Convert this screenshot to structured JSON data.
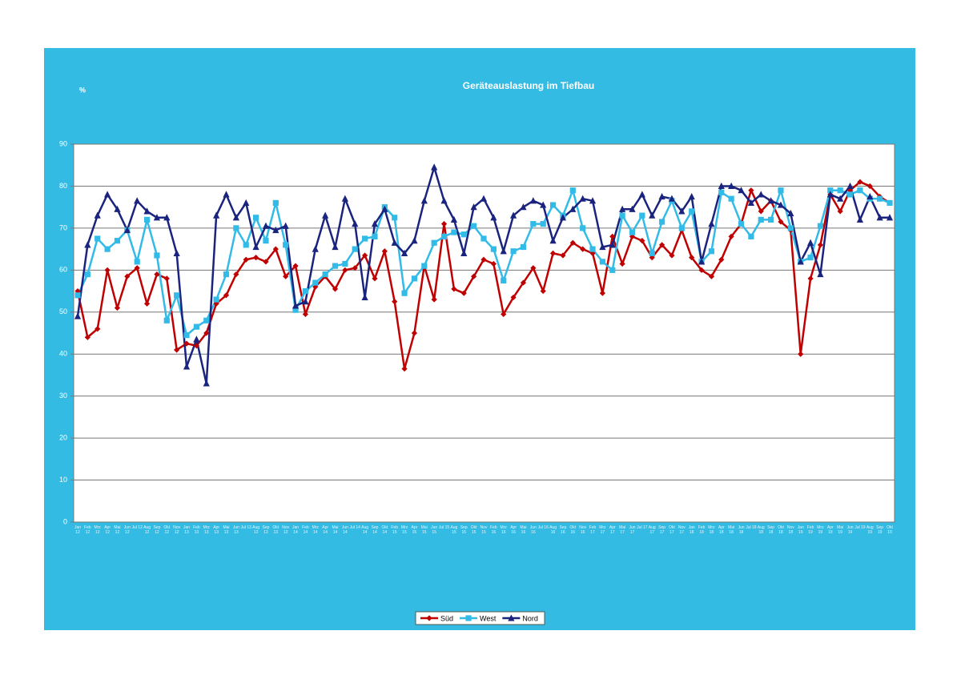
{
  "chart_data": {
    "type": "line",
    "title": "Geräteauslastung im Tiefbau",
    "y_label": "%",
    "categories": [
      "Jan 12",
      "Feb 12",
      "Mrz 12",
      "Apr 12",
      "Mai 12",
      "Jun 12",
      "Jul 12",
      "Aug 12",
      "Sep 12",
      "Okt 12",
      "Nov 12",
      "Jan 13",
      "Feb 13",
      "Mrz 13",
      "Apr 13",
      "Mai 13",
      "Jun 13",
      "Jul 13",
      "Aug 13",
      "Sep 13",
      "Okt 13",
      "Nov 13",
      "Jan 14",
      "Feb 14",
      "Mrz 14",
      "Apr 14",
      "Mai 14",
      "Jun 14",
      "Jul 14",
      "Aug 14",
      "Sep 14",
      "Okt 14",
      "Feb 15",
      "Mrz 15",
      "Apr 15",
      "Mai 15",
      "Jun 15",
      "Jul 15",
      "Aug 15",
      "Sep 15",
      "Okt 15",
      "Nov 15",
      "Feb 16",
      "Mrz 16",
      "Apr 16",
      "Mai 16",
      "Jun 16",
      "Jul 16",
      "Aug 16",
      "Sep 16",
      "Okt 16",
      "Nov 16",
      "Feb 17",
      "Mrz 17",
      "Apr 17",
      "Mai 17",
      "Jun 17",
      "Jul 17",
      "Aug 17",
      "Sep 17",
      "Okt 17",
      "Nov 17",
      "Jan 18",
      "Feb 18",
      "Mrz 18",
      "Apr 18",
      "Mai 18",
      "Jun 18",
      "Jul 18",
      "Aug 18",
      "Sep 18",
      "Okt 18",
      "Nov 18",
      "Jan 19",
      "Feb 19",
      "Mrz 19",
      "Apr 19",
      "Mai 19",
      "Jun 19",
      "Jul 19",
      "Aug 19",
      "Sep 19",
      "Okt 19"
    ],
    "series": [
      {
        "name": "Süd",
        "color": "#c00000",
        "marker": "diamond",
        "values": [
          55,
          44,
          46,
          60,
          51,
          58.5,
          60.5,
          52,
          59,
          58,
          41,
          42.5,
          42,
          45,
          52,
          54,
          59,
          62.5,
          63,
          62,
          65,
          58.5,
          61,
          49.5,
          56,
          58.5,
          55.5,
          60,
          60.5,
          63.5,
          58,
          64.5,
          52.5,
          36.5,
          45,
          61,
          53,
          71,
          55.5,
          54.5,
          58.5,
          62.5,
          61.5,
          49.5,
          53.5,
          57,
          60.5,
          55,
          64,
          63.5,
          66.5,
          65,
          64,
          54.5,
          68,
          61.5,
          68,
          67,
          63,
          66,
          63.5,
          69.5,
          63,
          60,
          58.5,
          62.5,
          68,
          71,
          79,
          74,
          76.5,
          71.5,
          69.5,
          40,
          58,
          66,
          78,
          74,
          79,
          81,
          80,
          77.5,
          76
        ]
      },
      {
        "name": "West",
        "color": "#33bbe8",
        "marker": "square",
        "values": [
          54,
          59,
          67.5,
          65,
          67,
          69.5,
          62,
          72,
          63.5,
          48,
          54,
          44.5,
          46.5,
          48,
          53,
          59,
          70,
          66,
          72.5,
          67,
          76,
          66,
          50.5,
          55,
          57,
          59,
          61,
          61.5,
          65,
          67.5,
          68,
          75,
          72.5,
          54.5,
          58,
          61,
          66.5,
          68,
          69,
          68.5,
          70.5,
          67.5,
          65,
          57.5,
          64.5,
          65.5,
          71,
          71,
          75.5,
          73,
          79,
          70,
          65,
          62,
          60,
          73,
          69,
          73,
          64,
          71.5,
          76.5,
          70,
          74,
          62,
          64.5,
          78.5,
          77,
          71,
          68,
          72,
          72,
          79,
          70,
          62,
          63,
          70.5,
          79,
          79,
          78,
          79,
          77,
          77,
          76
        ]
      },
      {
        "name": "Nord",
        "color": "#1a237e",
        "marker": "triangle",
        "values": [
          49,
          66,
          73,
          78,
          74.5,
          69.5,
          76.5,
          74,
          72.5,
          72.5,
          64,
          37,
          43.5,
          33,
          73,
          78,
          72.5,
          76,
          65.5,
          70.5,
          69.5,
          70.5,
          51.5,
          52.5,
          65,
          73,
          65.5,
          77,
          71,
          53.5,
          71,
          74.5,
          66.5,
          64,
          67,
          76.5,
          84.5,
          76.5,
          72,
          64,
          75,
          77,
          72.5,
          64.5,
          73,
          75,
          76.5,
          75.5,
          67,
          72.5,
          74.5,
          77,
          76.5,
          65.5,
          66,
          74.5,
          74.5,
          78,
          73,
          77.5,
          77,
          74,
          77.5,
          62,
          71,
          80,
          80,
          79,
          76,
          78,
          76.5,
          75.5,
          73.5,
          62,
          66.5,
          59,
          78,
          77,
          80,
          72,
          77.5,
          72.5,
          72.5
        ]
      }
    ],
    "ylim": [
      0,
      90
    ],
    "yticks": [
      0,
      10,
      20,
      30,
      40,
      50,
      60,
      70,
      80,
      90
    ],
    "grid": true,
    "legend": "bottom"
  }
}
